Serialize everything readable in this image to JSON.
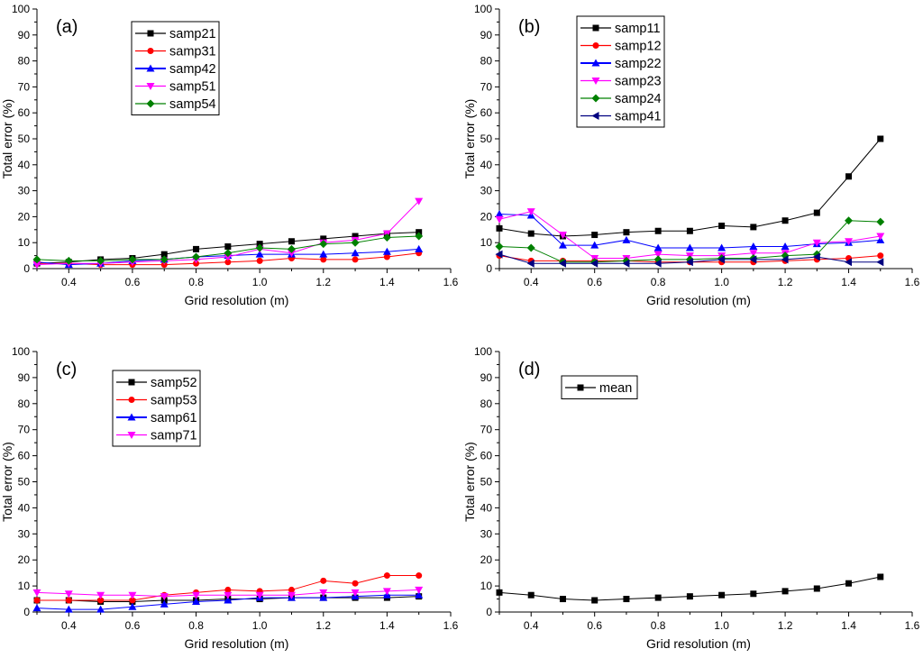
{
  "chart_data": [
    {
      "type": "line",
      "panel_label": "(a)",
      "xlabel": "Grid resolution (m)",
      "ylabel": "Total error (%)",
      "xlim": [
        0.3,
        1.6
      ],
      "ylim": [
        0,
        100
      ],
      "xticks": [
        "0.4",
        "0.6",
        "0.8",
        "1.0",
        "1.2",
        "1.4",
        "1.6"
      ],
      "yticks": [
        "0",
        "10",
        "20",
        "30",
        "40",
        "50",
        "60",
        "70",
        "80",
        "90",
        "100"
      ],
      "legend": "top-left",
      "x": [
        0.3,
        0.4,
        0.5,
        0.6,
        0.7,
        0.8,
        0.9,
        1.0,
        1.1,
        1.2,
        1.3,
        1.4,
        1.5
      ],
      "series": [
        {
          "name": "samp21",
          "color": "#000000",
          "marker": "square",
          "values": [
            2,
            2.5,
            3.5,
            4,
            5.5,
            7.5,
            8.5,
            9.5,
            10.5,
            11.5,
            12.5,
            13.5,
            14
          ]
        },
        {
          "name": "samp31",
          "color": "#ff0000",
          "marker": "circle",
          "values": [
            2,
            2,
            1.5,
            1.5,
            1.5,
            2,
            2.5,
            3,
            4,
            3.5,
            3.5,
            4.5,
            6
          ]
        },
        {
          "name": "samp42",
          "color": "#0000ff",
          "marker": "triangle-up",
          "values": [
            2.5,
            1.5,
            2,
            3,
            3.5,
            4.5,
            5,
            5.5,
            5.5,
            5.5,
            6,
            6.5,
            7.5
          ]
        },
        {
          "name": "samp51",
          "color": "#ff00ff",
          "marker": "triangle-down",
          "values": [
            1.5,
            2,
            2,
            2.5,
            3,
            3.5,
            4.5,
            7.5,
            6,
            10,
            11,
            13.5,
            26
          ]
        },
        {
          "name": "samp54",
          "color": "#008000",
          "marker": "diamond",
          "values": [
            3.5,
            3,
            3,
            3.5,
            3.5,
            4.5,
            6,
            8,
            7.5,
            9.5,
            10,
            12,
            12.5
          ]
        }
      ]
    },
    {
      "type": "line",
      "panel_label": "(b)",
      "xlabel": "Grid resolution (m)",
      "ylabel": "Total error (%)",
      "xlim": [
        0.3,
        1.6
      ],
      "ylim": [
        0,
        100
      ],
      "xticks": [
        "0.4",
        "0.6",
        "0.8",
        "1.0",
        "1.2",
        "1.4",
        "1.6"
      ],
      "yticks": [
        "0",
        "10",
        "20",
        "30",
        "40",
        "50",
        "60",
        "70",
        "80",
        "90",
        "100"
      ],
      "legend": "top-left",
      "x": [
        0.3,
        0.4,
        0.5,
        0.6,
        0.7,
        0.8,
        0.9,
        1.0,
        1.1,
        1.2,
        1.3,
        1.4,
        1.5
      ],
      "series": [
        {
          "name": "samp11",
          "color": "#000000",
          "marker": "square",
          "values": [
            15.5,
            13.5,
            12.5,
            13,
            14,
            14.5,
            14.5,
            16.5,
            16,
            18.5,
            21.5,
            35.5,
            50
          ]
        },
        {
          "name": "samp12",
          "color": "#ff0000",
          "marker": "circle",
          "values": [
            5,
            3,
            3,
            3,
            3,
            2.5,
            2.5,
            2.5,
            2.5,
            3,
            3.5,
            4,
            5
          ]
        },
        {
          "name": "samp22",
          "color": "#0000ff",
          "marker": "triangle-up",
          "values": [
            21,
            20.5,
            9,
            9,
            11,
            8,
            8,
            8,
            8.5,
            8.5,
            9.5,
            10,
            11
          ]
        },
        {
          "name": "samp23",
          "color": "#ff00ff",
          "marker": "triangle-down",
          "values": [
            19,
            22,
            13,
            4,
            4,
            5.5,
            5,
            5,
            6,
            6,
            10,
            10.5,
            12.5
          ]
        },
        {
          "name": "samp24",
          "color": "#008000",
          "marker": "diamond",
          "values": [
            8.5,
            8,
            2.5,
            2.5,
            3,
            3.5,
            3.5,
            4,
            4,
            5,
            5.5,
            18.5,
            18
          ]
        },
        {
          "name": "samp41",
          "color": "#000080",
          "marker": "triangle-left",
          "values": [
            5.5,
            2,
            2,
            2,
            2,
            2,
            2.5,
            3.5,
            3.5,
            3.5,
            4.5,
            2.5,
            2.5
          ]
        }
      ]
    },
    {
      "type": "line",
      "panel_label": "(c)",
      "xlabel": "Grid resolution (m)",
      "ylabel": "Total error (%)",
      "xlim": [
        0.3,
        1.6
      ],
      "ylim": [
        0,
        100
      ],
      "xticks": [
        "0.4",
        "0.6",
        "0.8",
        "1.0",
        "1.2",
        "1.4",
        "1.6"
      ],
      "yticks": [
        "0",
        "10",
        "20",
        "30",
        "40",
        "50",
        "60",
        "70",
        "80",
        "90",
        "100"
      ],
      "legend": "top-left",
      "x": [
        0.3,
        0.4,
        0.5,
        0.6,
        0.7,
        0.8,
        0.9,
        1.0,
        1.1,
        1.2,
        1.3,
        1.4,
        1.5
      ],
      "series": [
        {
          "name": "samp52",
          "color": "#000000",
          "marker": "square",
          "values": [
            4.5,
            4.5,
            4,
            4,
            4.5,
            4.5,
            5,
            5,
            5.5,
            5.5,
            5.5,
            5.5,
            6
          ]
        },
        {
          "name": "samp53",
          "color": "#ff0000",
          "marker": "circle",
          "values": [
            4.5,
            4.5,
            4.5,
            4.5,
            6.5,
            7.5,
            8.5,
            8,
            8.5,
            12,
            11,
            14,
            14
          ]
        },
        {
          "name": "samp61",
          "color": "#0000ff",
          "marker": "triangle-up",
          "values": [
            1.5,
            1,
            1,
            2,
            3,
            4,
            4.5,
            5.5,
            5.5,
            5.5,
            6,
            6.5,
            6.5
          ]
        },
        {
          "name": "samp71",
          "color": "#ff00ff",
          "marker": "triangle-down",
          "values": [
            7.5,
            7,
            6.5,
            6.5,
            6,
            6.5,
            6.5,
            6.5,
            6.5,
            7.5,
            7.5,
            8,
            8.5
          ]
        }
      ]
    },
    {
      "type": "line",
      "panel_label": "(d)",
      "xlabel": "Grid resolution (m)",
      "ylabel": "Total error (%)",
      "xlim": [
        0.3,
        1.6
      ],
      "ylim": [
        0,
        100
      ],
      "xticks": [
        "0.4",
        "0.6",
        "0.8",
        "1.0",
        "1.2",
        "1.4",
        "1.6"
      ],
      "yticks": [
        "0",
        "10",
        "20",
        "30",
        "40",
        "50",
        "60",
        "70",
        "80",
        "90",
        "100"
      ],
      "legend": "top-left",
      "x": [
        0.3,
        0.4,
        0.5,
        0.6,
        0.7,
        0.8,
        0.9,
        1.0,
        1.1,
        1.2,
        1.3,
        1.4,
        1.5
      ],
      "series": [
        {
          "name": "mean",
          "color": "#000000",
          "marker": "square",
          "values": [
            7.5,
            6.5,
            5,
            4.5,
            5,
            5.5,
            6,
            6.5,
            7,
            8,
            9,
            11,
            13.5
          ]
        }
      ]
    }
  ]
}
